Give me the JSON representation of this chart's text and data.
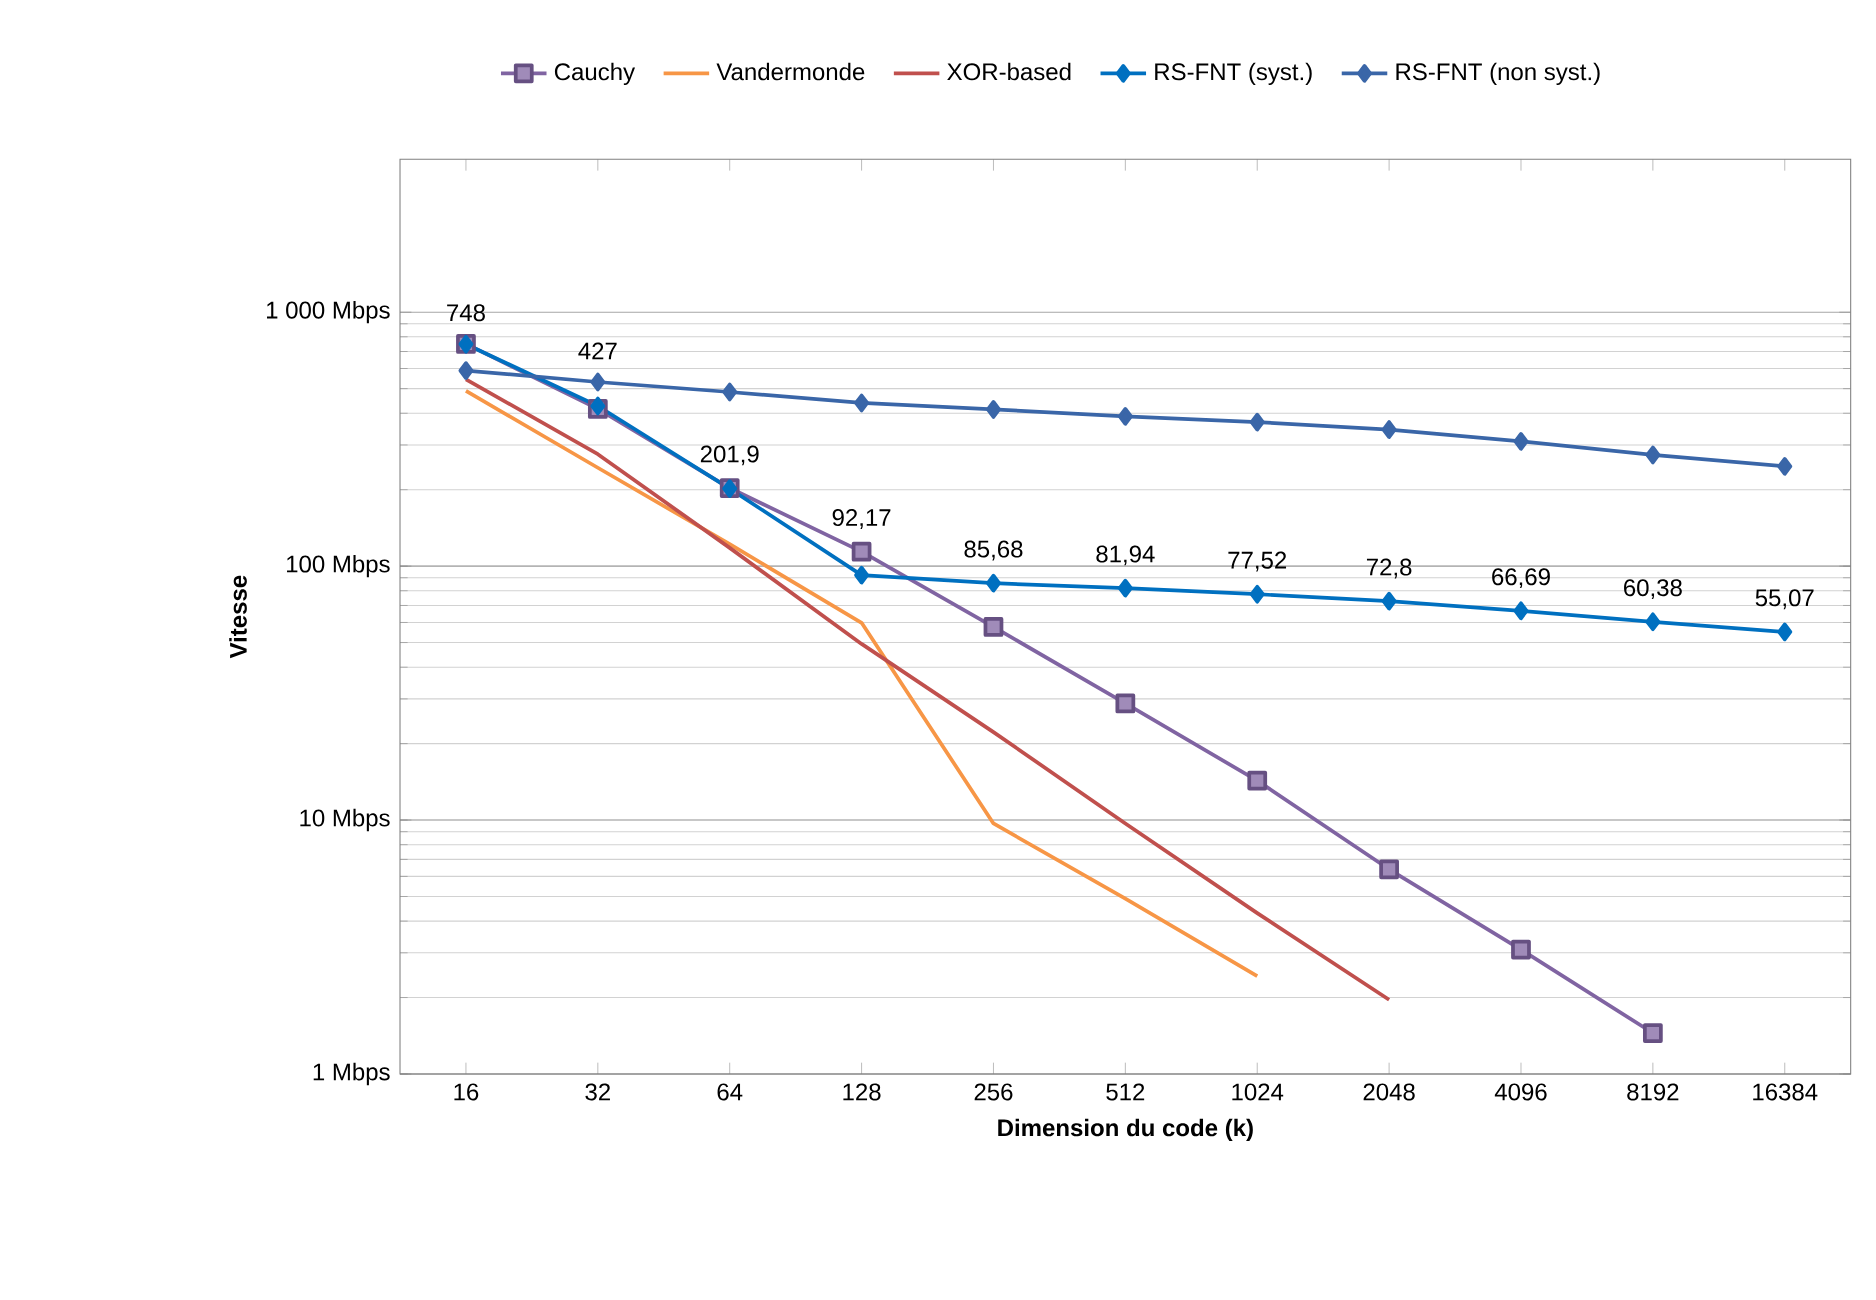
{
  "chart_data": {
    "type": "line",
    "xlabel": "Dimension du code (k)",
    "ylabel": "Vitesse",
    "categories": [
      "16",
      "32",
      "64",
      "128",
      "256",
      "512",
      "1024",
      "2048",
      "4096",
      "8192",
      "16384"
    ],
    "log": "y",
    "ylim": [
      1,
      4000
    ],
    "yticks": [
      {
        "value": 1,
        "label": "1 Mbps"
      },
      {
        "value": 10,
        "label": "10 Mbps"
      },
      {
        "value": 100,
        "label": "100 Mbps"
      },
      {
        "value": 1000,
        "label": "1 000 Mbps"
      }
    ],
    "grid": "y",
    "legend": "top",
    "series": [
      {
        "name": "Cauchy",
        "color": "#8064a2",
        "marker": "square",
        "values": [
          750,
          416,
          203,
          114,
          57.6,
          28.8,
          14.3,
          6.4,
          3.09,
          1.45,
          null
        ]
      },
      {
        "name": "Vandermonde",
        "color": "#f79646",
        "marker": "none",
        "values": [
          490,
          244,
          122,
          59.8,
          9.7,
          4.9,
          2.43,
          null,
          null,
          null,
          null
        ]
      },
      {
        "name": "XOR-based",
        "color": "#c0504d",
        "marker": "none",
        "values": [
          544,
          276,
          118,
          49.4,
          22.2,
          9.7,
          4.3,
          1.96,
          null,
          null,
          null
        ]
      },
      {
        "name": "RS-FNT (syst.)",
        "color": "#0070c0",
        "marker": "diamond",
        "values": [
          748,
          427,
          201.9,
          92.17,
          85.68,
          81.94,
          77.52,
          72.8,
          66.69,
          60.38,
          55.07
        ],
        "value_labels": [
          "748",
          "427",
          "201,9",
          "92,17",
          "85,68",
          "81,94",
          "77,52",
          "72,8",
          "66,69",
          "60,38",
          "55,07"
        ]
      },
      {
        "name": "RS-FNT (non syst.)",
        "color": "#3a66a8",
        "marker": "diamond",
        "values": [
          589,
          531,
          485,
          439,
          414,
          389,
          369,
          345,
          310,
          274,
          247
        ]
      }
    ]
  }
}
